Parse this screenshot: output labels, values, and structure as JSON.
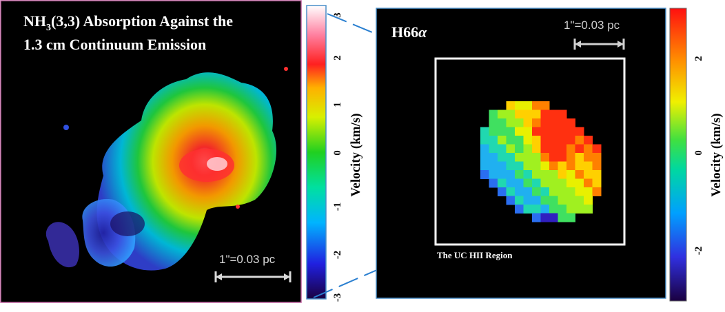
{
  "left_panel": {
    "title_line1_prefix": "NH",
    "title_line1_sub": "3",
    "title_line1_suffix": "(3,3) Absorption Against the",
    "title_line2": "1.3 cm Continuum Emission",
    "scale_bar_label": "1\"=0.03 pc",
    "colorbar": {
      "ticks": [
        "3",
        "2",
        "1",
        "0",
        "-1",
        "-2",
        "-3"
      ],
      "label": "Velocity (km/s)"
    }
  },
  "right_panel": {
    "title_prefix": "H66",
    "title_greek": "α",
    "scale_bar_label": "1\"=0.03 pc",
    "region_label": "The UC HII Region",
    "colorbar": {
      "ticks": [
        "2",
        "0",
        "-2"
      ],
      "label": "Velocity (km/s)"
    }
  },
  "colors": {
    "background": "#000000",
    "frame_left": "#c060a0",
    "frame_right": "#4a8fc8",
    "connector": "#2a7fd0",
    "scale_bar": "#d8d8d8"
  }
}
